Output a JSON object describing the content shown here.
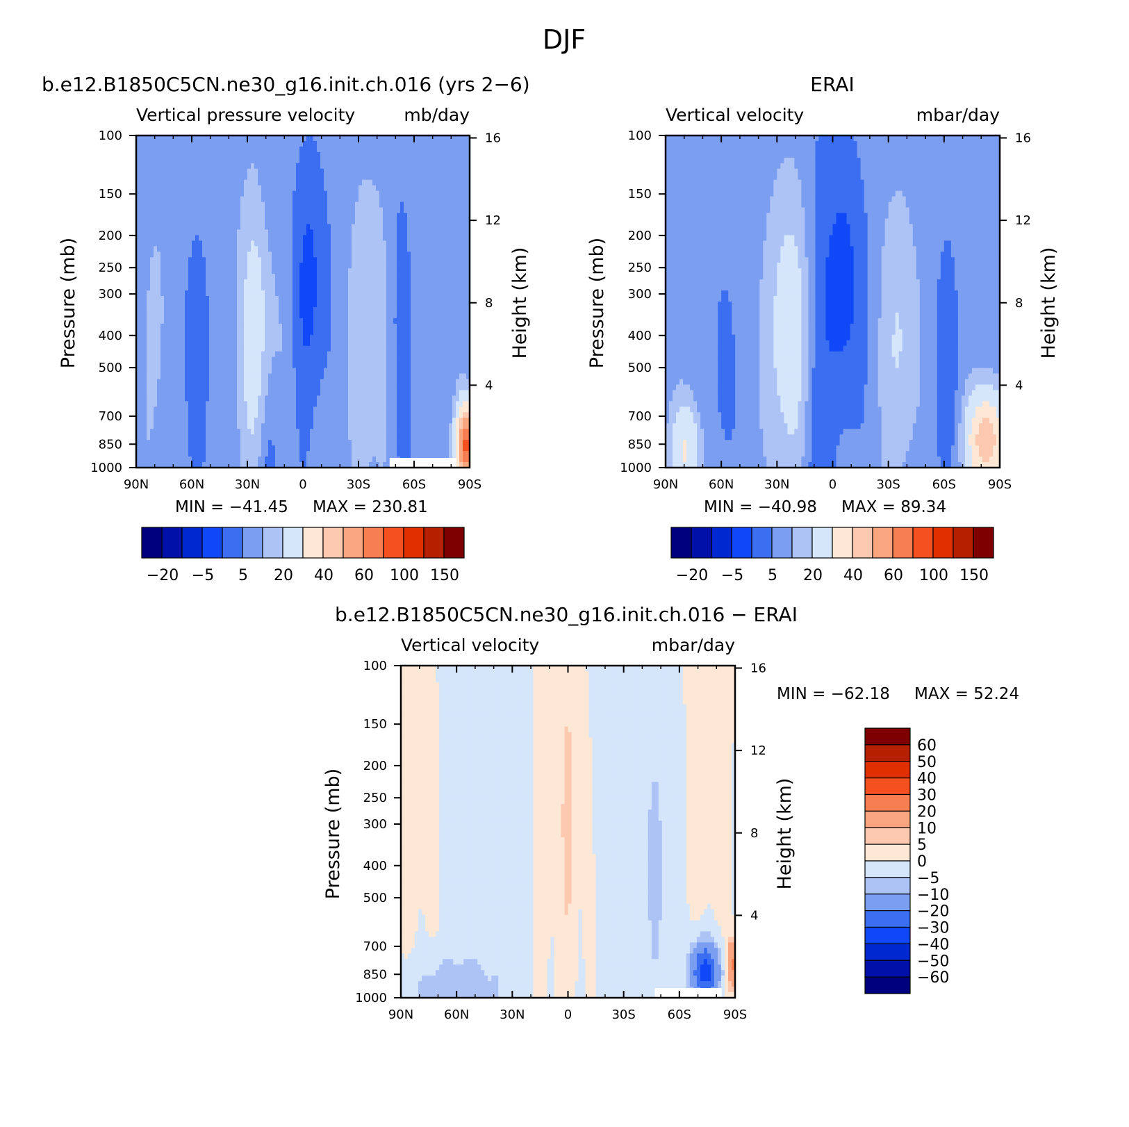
{
  "figure": {
    "title": "DJF"
  },
  "palette_abs": [
    "#00007f",
    "#0010a8",
    "#0028d0",
    "#1048f8",
    "#3b6ef0",
    "#7b9ef0",
    "#adc3f6",
    "#d5e6fb",
    "#fde7d5",
    "#fcc9b0",
    "#f9a680",
    "#f77e50",
    "#f55020",
    "#e03000",
    "#b62000",
    "#7f0000"
  ],
  "palette_diff": [
    "#00007f",
    "#0010a8",
    "#0028d0",
    "#1048f8",
    "#3b6ef0",
    "#7b9ef0",
    "#adc3f6",
    "#d5e6fb",
    "#fde7d5",
    "#fcc9b0",
    "#f9a680",
    "#f77e50",
    "#f55020",
    "#e03000",
    "#b62000",
    "#7f0000"
  ],
  "chart_data": [
    {
      "type": "heatmap",
      "panel_title": "b.e12.B1850C5CN.ne30_g16.init.ch.016 (yrs 2−6)",
      "left_label": "Vertical pressure velocity",
      "right_label": "mb/day",
      "ylabel": "Pressure (mb)",
      "y2label": "Height (km)",
      "x_ticks": [
        "90N",
        "60N",
        "30N",
        "0",
        "30S",
        "60S",
        "90S"
      ],
      "y_ticks": [
        "100",
        "150",
        "200",
        "250",
        "300",
        "400",
        "500",
        "700",
        "850",
        "1000"
      ],
      "y2_ticks": [
        "4",
        "8",
        "12",
        "16"
      ],
      "min_label": "MIN = −41.45",
      "max_label": "MAX = 230.81",
      "min": -41.45,
      "max": 230.81,
      "colorbar_labels": [
        "−20",
        "−5",
        "5",
        "20",
        "40",
        "60",
        "100",
        "150"
      ]
    },
    {
      "type": "heatmap",
      "panel_title": "ERAI",
      "left_label": "Vertical velocity",
      "right_label": "mbar/day",
      "ylabel": "Pressure (mb)",
      "y2label": "Height (km)",
      "x_ticks": [
        "90N",
        "60N",
        "30N",
        "0",
        "30S",
        "60S",
        "90S"
      ],
      "y_ticks": [
        "100",
        "150",
        "200",
        "250",
        "300",
        "400",
        "500",
        "700",
        "850",
        "1000"
      ],
      "y2_ticks": [
        "4",
        "8",
        "12",
        "16"
      ],
      "min_label": "MIN = −40.98",
      "max_label": "MAX = 89.34",
      "min": -40.98,
      "max": 89.34,
      "colorbar_labels": [
        "−20",
        "−5",
        "5",
        "20",
        "40",
        "60",
        "100",
        "150"
      ]
    },
    {
      "type": "heatmap",
      "panel_title": "b.e12.B1850C5CN.ne30_g16.init.ch.016 − ERAI",
      "left_label": "Vertical velocity",
      "right_label": "mbar/day",
      "ylabel": "Pressure (mb)",
      "y2label": "Height (km)",
      "x_ticks": [
        "90N",
        "60N",
        "30N",
        "0",
        "30S",
        "60S",
        "90S"
      ],
      "y_ticks": [
        "100",
        "150",
        "200",
        "250",
        "300",
        "400",
        "500",
        "700",
        "850",
        "1000"
      ],
      "y2_ticks": [
        "4",
        "8",
        "12",
        "16"
      ],
      "min_label": "MIN = −62.18",
      "max_label": "MAX = 52.24",
      "min": -62.18,
      "max": 52.24,
      "colorbar_labels": [
        "60",
        "50",
        "40",
        "30",
        "20",
        "10",
        "5",
        "0",
        "−5",
        "−10",
        "−20",
        "−30",
        "−40",
        "−50",
        "−60"
      ]
    }
  ]
}
